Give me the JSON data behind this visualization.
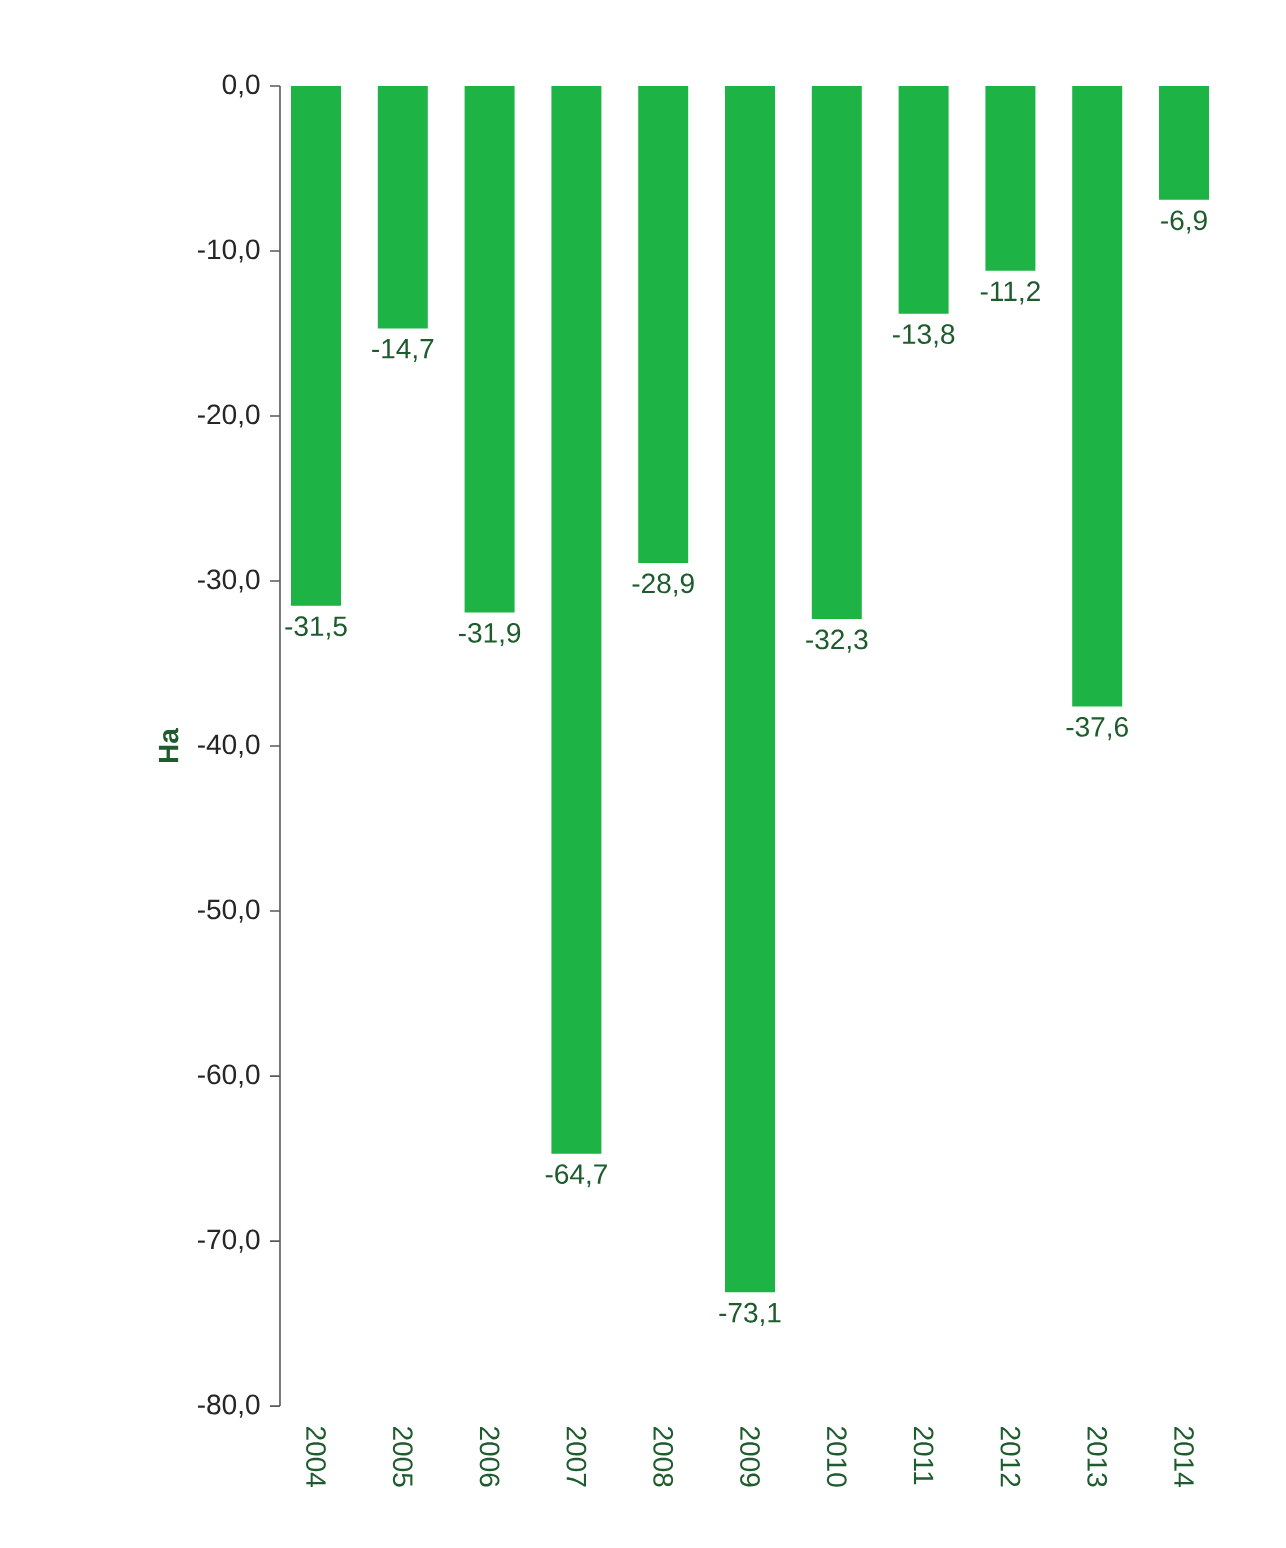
{
  "chart_data": {
    "type": "bar",
    "ylabel": "Ha",
    "categories": [
      "2004",
      "2005",
      "2006",
      "2007",
      "2008",
      "2009",
      "2010",
      "2011",
      "2012",
      "2013",
      "2014"
    ],
    "values": [
      -31.5,
      -14.7,
      -31.9,
      -64.7,
      -28.9,
      -73.1,
      -32.3,
      -13.8,
      -11.2,
      -37.6,
      -6.9
    ],
    "value_labels": [
      "-31,5",
      "-14,7",
      "-31,9",
      "-64,7",
      "-28,9",
      "-73,1",
      "-32,3",
      "-13,8",
      "-11,2",
      "-37,6",
      "-6,9"
    ],
    "color": "#1db445",
    "ylim": [
      -80,
      0
    ],
    "yticks": [
      {
        "value": 0,
        "label": "0,0"
      },
      {
        "value": -10,
        "label": "-10,0"
      },
      {
        "value": -20,
        "label": "-20,0"
      },
      {
        "value": -30,
        "label": "-30,0"
      },
      {
        "value": -40,
        "label": "-40,0"
      },
      {
        "value": -50,
        "label": "-50,0"
      },
      {
        "value": -60,
        "label": "-60,0"
      },
      {
        "value": -70,
        "label": "-70,0"
      },
      {
        "value": -80,
        "label": "-80,0"
      }
    ]
  }
}
